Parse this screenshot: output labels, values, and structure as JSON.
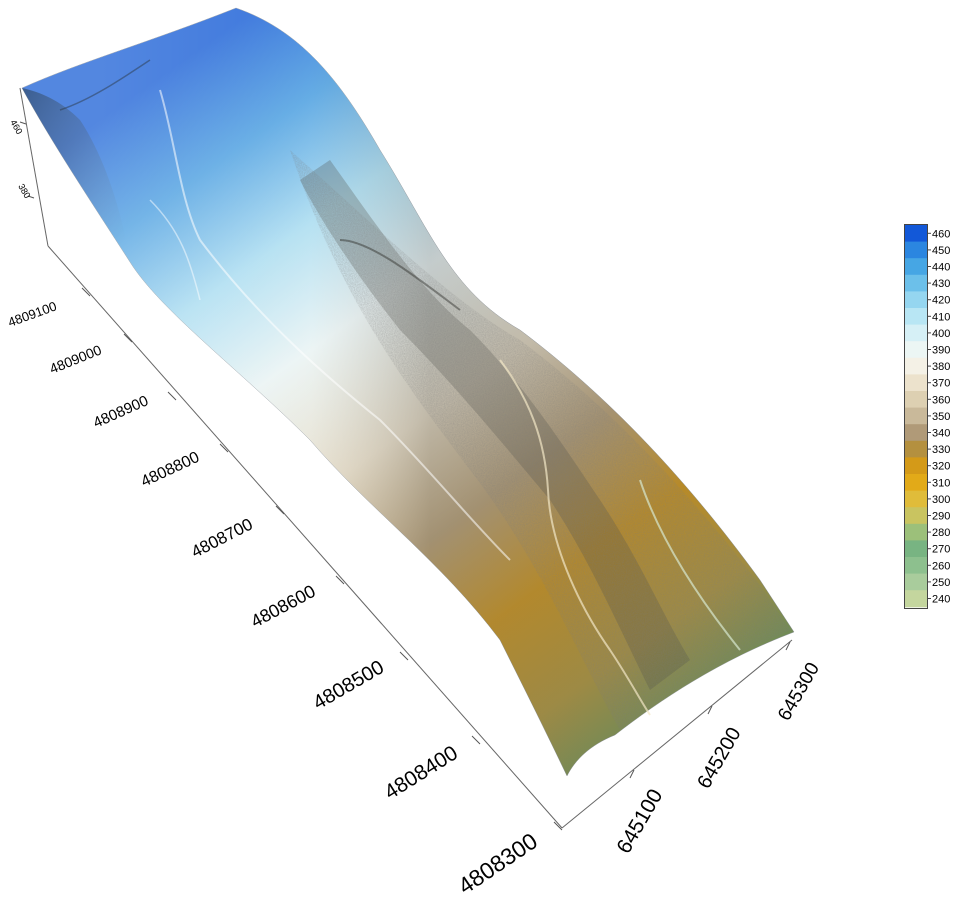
{
  "map": {
    "y_axis_ticks": [
      "4809100",
      "4809000",
      "4808900",
      "4808800",
      "4808700",
      "4808600",
      "4808500",
      "4808400",
      "4808300"
    ],
    "x_axis_ticks": [
      "645100",
      "645200",
      "645300"
    ],
    "z_axis_ticks": [
      "460",
      "380"
    ],
    "colorbar": {
      "values": [
        "460",
        "450",
        "440",
        "430",
        "420",
        "410",
        "400",
        "390",
        "380",
        "370",
        "360",
        "350",
        "340",
        "330",
        "320",
        "310",
        "300",
        "290",
        "280",
        "270",
        "260",
        "250",
        "240"
      ],
      "colors": [
        "#1258d8",
        "#2b86e0",
        "#46a6e4",
        "#6cc0ea",
        "#95d6f0",
        "#b8e6f4",
        "#d6f0f6",
        "#ecf6f4",
        "#f4f1e6",
        "#ece2cc",
        "#ddd0b2",
        "#c9b99a",
        "#b09a78",
        "#b4903f",
        "#d49a18",
        "#e2aa18",
        "#e0bc3a",
        "#c9c460",
        "#9cc07a",
        "#78b482",
        "#8dc08e",
        "#a9cc9c",
        "#c4d69e"
      ]
    }
  }
}
